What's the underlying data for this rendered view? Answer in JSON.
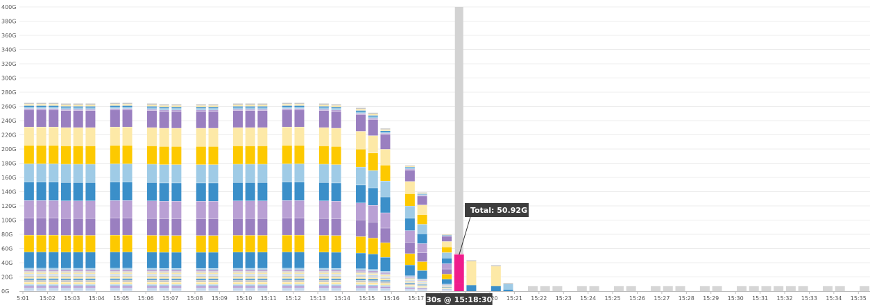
{
  "chart_data": {
    "type": "bar",
    "stacked": true,
    "ylim": [
      0,
      400
    ],
    "y_ticks": [
      "0G",
      "20G",
      "40G",
      "60G",
      "80G",
      "100G",
      "120G",
      "140G",
      "160G",
      "180G",
      "200G",
      "220G",
      "240G",
      "260G",
      "280G",
      "300G",
      "320G",
      "340G",
      "360G",
      "380G",
      "400G"
    ],
    "x_ticks": [
      "5:01",
      "15:02",
      "15:03",
      "15:04",
      "15:05",
      "15:06",
      "15:07",
      "15:08",
      "15:09",
      "15:10",
      "15:11",
      "15:12",
      "15:13",
      "15:14",
      "15:15",
      "15:16",
      "15:17",
      "15:18",
      "15:19",
      "15:20",
      "15:21",
      "15:22",
      "15:23",
      "15:24",
      "15:25",
      "15:26",
      "15:27",
      "15:28",
      "15:29",
      "15:30",
      "15:31",
      "15:32",
      "15:33",
      "15:34",
      "15:35"
    ],
    "grid": true,
    "colors": {
      "purple": "#9a7fc0",
      "light_yellow": "#fde9a7",
      "yellow": "#fdc900",
      "light_blue": "#9fcbe6",
      "blue": "#3b8fc9",
      "lavender": "#b9a0d4",
      "grey": "#c8c8c8",
      "pale_blue": "#c5d9ee",
      "highlight": "#ef1d8c",
      "placeholder_grey": "#d6d6d6",
      "hover_band": "#d3d3d3"
    },
    "full_profile": [
      {
        "color": "pale_blue",
        "value": 4
      },
      {
        "color": "lavender",
        "value": 3
      },
      {
        "color": "light_blue",
        "value": 2
      },
      {
        "color": "light_yellow",
        "value": 3
      },
      {
        "color": "grey",
        "value": 3
      },
      {
        "color": "blue",
        "value": 2
      },
      {
        "color": "light_yellow",
        "value": 2
      },
      {
        "color": "grey",
        "value": 2
      },
      {
        "color": "pale_blue",
        "value": 2
      },
      {
        "color": "light_yellow",
        "value": 2
      },
      {
        "color": "grey",
        "value": 2
      },
      {
        "color": "lavender",
        "value": 2
      },
      {
        "color": "light_blue",
        "value": 2
      },
      {
        "color": "blue",
        "value": 22
      },
      {
        "color": "yellow",
        "value": 23
      },
      {
        "color": "purple",
        "value": 23
      },
      {
        "color": "lavender",
        "value": 24
      },
      {
        "color": "blue",
        "value": 25
      },
      {
        "color": "light_blue",
        "value": 25
      },
      {
        "color": "yellow",
        "value": 25
      },
      {
        "color": "light_yellow",
        "value": 25
      },
      {
        "color": "purple",
        "value": 23
      },
      {
        "color": "lavender",
        "value": 2
      },
      {
        "color": "light_blue",
        "value": 2
      },
      {
        "color": "blue",
        "value": 2
      },
      {
        "color": "light_yellow",
        "value": 2
      },
      {
        "color": "grey",
        "value": 2
      }
    ],
    "full_totals": [
      {
        "pos": 0.25,
        "total": 265
      },
      {
        "pos": 0.75,
        "total": 265
      },
      {
        "pos": 1.25,
        "total": 265
      },
      {
        "pos": 1.75,
        "total": 264
      },
      {
        "pos": 2.25,
        "total": 264
      },
      {
        "pos": 2.75,
        "total": 264
      },
      {
        "pos": 3.75,
        "total": 265
      },
      {
        "pos": 4.25,
        "total": 265
      },
      {
        "pos": 5.25,
        "total": 264
      },
      {
        "pos": 5.75,
        "total": 263
      },
      {
        "pos": 6.25,
        "total": 263
      },
      {
        "pos": 7.25,
        "total": 263
      },
      {
        "pos": 7.75,
        "total": 263
      },
      {
        "pos": 8.75,
        "total": 264
      },
      {
        "pos": 9.25,
        "total": 264
      },
      {
        "pos": 9.75,
        "total": 264
      },
      {
        "pos": 10.75,
        "total": 265
      },
      {
        "pos": 11.25,
        "total": 265
      },
      {
        "pos": 12.25,
        "total": 264
      },
      {
        "pos": 12.75,
        "total": 263
      },
      {
        "pos": 13.75,
        "total": 258
      },
      {
        "pos": 14.25,
        "total": 251
      },
      {
        "pos": 14.75,
        "total": 229
      },
      {
        "pos": 15.75,
        "total": 177
      },
      {
        "pos": 16.25,
        "total": 139
      },
      {
        "pos": 17.25,
        "total": 80
      }
    ],
    "tail_bars": [
      {
        "pos": 17.75,
        "total": 50.92,
        "color": "highlight"
      },
      {
        "pos": 18.25,
        "total": 42,
        "color": "light_yellow"
      },
      {
        "pos": 19.25,
        "total": 35,
        "color": "light_yellow"
      },
      {
        "pos": 19.75,
        "total": 10,
        "color": "light_blue"
      }
    ],
    "placeholder_bars": [
      {
        "pos": 20.75,
        "total": 7
      },
      {
        "pos": 21.25,
        "total": 7
      },
      {
        "pos": 21.75,
        "total": 7
      },
      {
        "pos": 22.75,
        "total": 7
      },
      {
        "pos": 23.25,
        "total": 7
      },
      {
        "pos": 24.25,
        "total": 7
      },
      {
        "pos": 24.75,
        "total": 7
      },
      {
        "pos": 25.75,
        "total": 7
      },
      {
        "pos": 26.25,
        "total": 7
      },
      {
        "pos": 26.75,
        "total": 7
      },
      {
        "pos": 27.75,
        "total": 7
      },
      {
        "pos": 28.25,
        "total": 7
      },
      {
        "pos": 29.25,
        "total": 7
      },
      {
        "pos": 29.75,
        "total": 7
      },
      {
        "pos": 30.25,
        "total": 7
      },
      {
        "pos": 30.75,
        "total": 7
      },
      {
        "pos": 31.25,
        "total": 7
      },
      {
        "pos": 31.75,
        "total": 7
      },
      {
        "pos": 32.75,
        "total": 7
      },
      {
        "pos": 33.25,
        "total": 7
      },
      {
        "pos": 34.25,
        "total": 7
      }
    ],
    "hover": {
      "pos": 17.75,
      "tooltip": "Total: 50.92G",
      "time_label": "30s @ 15:18:30"
    }
  }
}
